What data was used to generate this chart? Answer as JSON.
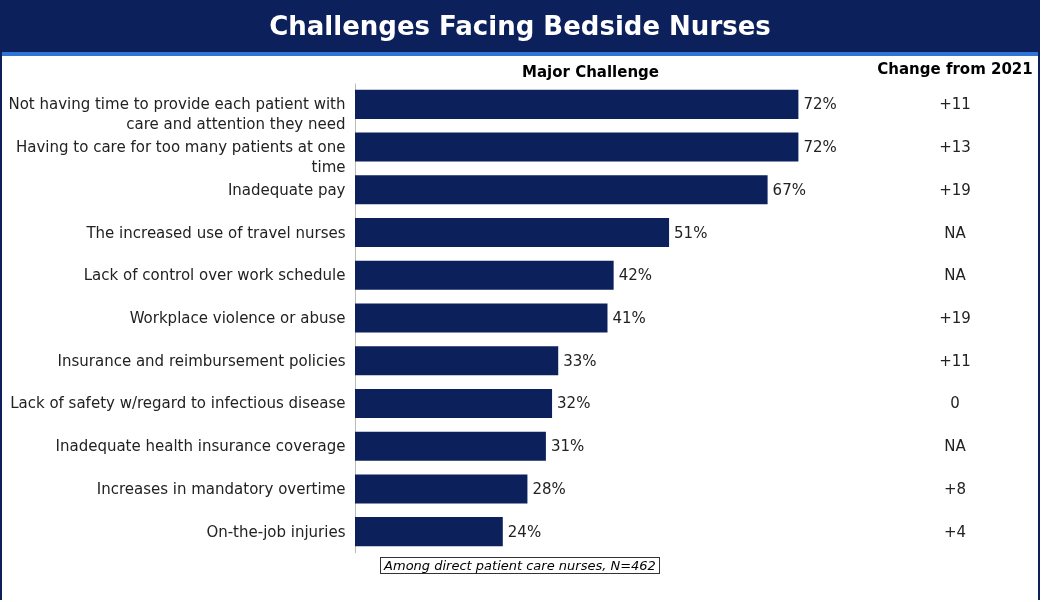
{
  "chart_data": {
    "type": "bar",
    "orientation": "horizontal",
    "title": "Challenges Facing Bedside Nurses",
    "xlabel": "Major Challenge",
    "categories": [
      "Not having time to provide each patient with care and attention they need",
      "Having to care for too many patients at one time",
      "Inadequate pay",
      "The increased use of travel nurses",
      "Lack of control over work schedule",
      "Workplace violence or abuse",
      "Insurance and reimbursement policies",
      "Lack of safety w/regard to infectious disease",
      "Inadequate health insurance coverage",
      "Increases in mandatory overtime",
      "On-the-job injuries"
    ],
    "values": [
      72,
      72,
      67,
      51,
      42,
      41,
      33,
      32,
      31,
      28,
      24
    ],
    "value_labels": [
      "72%",
      "72%",
      "67%",
      "51%",
      "42%",
      "41%",
      "33%",
      "32%",
      "31%",
      "28%",
      "24%"
    ],
    "color": "#0c215c",
    "grid": false,
    "annotations": [
      "Change from 2021",
      "+11",
      "+13",
      "+19",
      "NA",
      "NA",
      "+19",
      "+11",
      "0",
      "NA",
      "+8",
      "+4",
      "Among direct patient care nurses, N=462"
    ]
  }
}
